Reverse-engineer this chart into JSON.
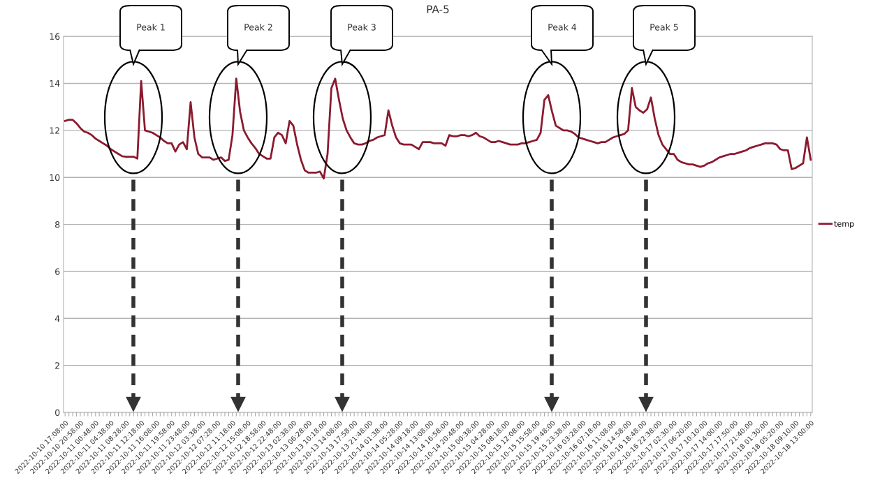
{
  "chart_data": {
    "type": "line",
    "title": "PA-5",
    "categories": [
      "2022-10-10 17:08:00",
      null,
      null,
      null,
      "2022-10-10 20:58:00",
      null,
      null,
      null,
      "2022-10-11 00:48:00",
      null,
      null,
      null,
      "2022-10-11 04:38:00",
      null,
      null,
      null,
      "2022-10-11 08:28:00",
      null,
      null,
      null,
      "2022-10-11 12:18:00",
      null,
      null,
      null,
      "2022-10-11 16:08:00",
      null,
      null,
      null,
      "2022-10-11 19:58:00",
      null,
      null,
      null,
      "2022-10-11 23:48:00",
      null,
      null,
      null,
      "2022-10-12 03:38:00",
      null,
      null,
      null,
      "2022-10-12 07:28:00",
      null,
      null,
      null,
      "2022-10-12 11:18:00",
      null,
      null,
      null,
      "2022-10-12 15:08:00",
      null,
      null,
      null,
      "2022-10-12 18:58:00",
      null,
      null,
      null,
      "2022-10-12 22:48:00",
      null,
      null,
      null,
      "2022-10-13 02:38:00",
      null,
      null,
      null,
      "2022-10-13 06:28:00",
      null,
      null,
      null,
      "2022-10-13 10:18:00",
      null,
      null,
      null,
      "2022-10-13 14:08:00",
      null,
      null,
      null,
      "2022-10-13 17:58:00",
      null,
      null,
      null,
      "2022-10-13 21:48:00",
      null,
      null,
      null,
      "2022-10-14 01:38:00",
      null,
      null,
      null,
      "2022-10-14 05:28:00",
      null,
      null,
      null,
      "2022-10-14 09:18:00",
      null,
      null,
      null,
      "2022-10-14 13:08:00",
      null,
      null,
      null,
      "2022-10-14 16:58:00",
      null,
      null,
      null,
      "2022-10-14 20:48:00",
      null,
      null,
      null,
      "2022-10-15 00:38:00",
      null,
      null,
      null,
      "2022-10-15 04:28:00",
      null,
      null,
      null,
      "2022-10-15 08:18:00",
      null,
      null,
      null,
      "2022-10-15 12:08:00",
      null,
      null,
      null,
      "2022-10-15 15:58:00",
      null,
      null,
      null,
      "2022-10-15 19:48:00",
      null,
      null,
      null,
      "2022-10-15 23:38:00",
      null,
      null,
      null,
      "2022-10-16 03:28:00",
      null,
      null,
      null,
      "2022-10-16 07:18:00",
      null,
      null,
      null,
      "2022-10-16 11:08:00",
      null,
      null,
      null,
      "2022-10-16 14:58:00",
      null,
      null,
      null,
      "2022-10-16 18:48:00",
      null,
      null,
      null,
      "2022-10-16 22:38:00",
      null,
      null,
      null,
      "2022-10-17 02:30:00",
      null,
      null,
      null,
      "2022-10-17 06:20:00",
      null,
      null,
      null,
      "2022-10-17 10:10:00",
      null,
      null,
      null,
      "2022-10-17 14:00:00",
      null,
      null,
      null,
      "2022-10-17 17:50:00",
      null,
      null,
      null,
      "2022-10-17 21:40:00",
      null,
      null,
      null,
      "2022-10-18 01:30:00",
      null,
      null,
      null,
      "2022-10-18 05:20:00",
      null,
      null,
      null,
      "2022-10-18 09:10:00",
      null,
      null,
      null,
      "2022-10-18 13:00:00"
    ],
    "series": [
      {
        "name": "temp",
        "color": "#8b1a2f",
        "values": [
          12.4,
          12.45,
          12.45,
          12.3,
          12.1,
          11.95,
          11.9,
          11.8,
          11.65,
          11.55,
          11.45,
          11.35,
          11.2,
          11.1,
          11.0,
          10.9,
          10.88,
          10.88,
          10.88,
          10.8,
          14.1,
          12.0,
          11.95,
          11.9,
          11.8,
          11.7,
          11.55,
          11.45,
          11.45,
          11.1,
          11.4,
          11.5,
          11.2,
          13.2,
          11.7,
          11.0,
          10.85,
          10.85,
          10.85,
          10.75,
          10.8,
          10.85,
          10.7,
          10.75,
          11.8,
          14.2,
          12.8,
          12.0,
          11.7,
          11.45,
          11.25,
          11.0,
          10.9,
          10.8,
          10.8,
          11.7,
          11.9,
          11.8,
          11.45,
          12.4,
          12.2,
          11.4,
          10.75,
          10.3,
          10.2,
          10.2,
          10.2,
          10.25,
          9.95,
          11.0,
          13.8,
          14.2,
          13.3,
          12.5,
          12.0,
          11.7,
          11.45,
          11.4,
          11.4,
          11.45,
          11.55,
          11.6,
          11.7,
          11.75,
          11.8,
          12.85,
          12.2,
          11.7,
          11.45,
          11.4,
          11.4,
          11.4,
          11.3,
          11.2,
          11.5,
          11.5,
          11.5,
          11.45,
          11.45,
          11.45,
          11.35,
          11.8,
          11.75,
          11.75,
          11.8,
          11.8,
          11.75,
          11.8,
          11.9,
          11.75,
          11.7,
          11.6,
          11.5,
          11.5,
          11.55,
          11.5,
          11.45,
          11.4,
          11.4,
          11.4,
          11.45,
          11.45,
          11.5,
          11.55,
          11.6,
          11.9,
          13.3,
          13.5,
          12.8,
          12.2,
          12.1,
          12.0,
          12.0,
          11.95,
          11.85,
          11.7,
          11.65,
          11.6,
          11.55,
          11.5,
          11.45,
          11.5,
          11.5,
          11.6,
          11.7,
          11.75,
          11.8,
          11.85,
          12.0,
          13.8,
          13.0,
          12.85,
          12.75,
          12.9,
          13.4,
          12.5,
          11.8,
          11.4,
          11.2,
          11.0,
          11.0,
          10.75,
          10.65,
          10.6,
          10.55,
          10.55,
          10.5,
          10.45,
          10.5,
          10.6,
          10.65,
          10.75,
          10.85,
          10.9,
          10.95,
          11.0,
          11.0,
          11.05,
          11.1,
          11.15,
          11.25,
          11.3,
          11.35,
          11.4,
          11.45,
          11.45,
          11.45,
          11.4,
          11.2,
          11.15,
          11.15,
          10.35,
          10.4,
          10.5,
          10.6,
          11.7,
          10.75
        ]
      }
    ],
    "ylim": [
      0,
      16
    ],
    "yticks": [
      0,
      2,
      4,
      6,
      8,
      10,
      12,
      14,
      16
    ],
    "grid": "y",
    "legend": "right",
    "annotations": [
      "Peak 1",
      "Peak 2",
      "Peak 3",
      "Peak 4",
      "Peak 5"
    ]
  }
}
